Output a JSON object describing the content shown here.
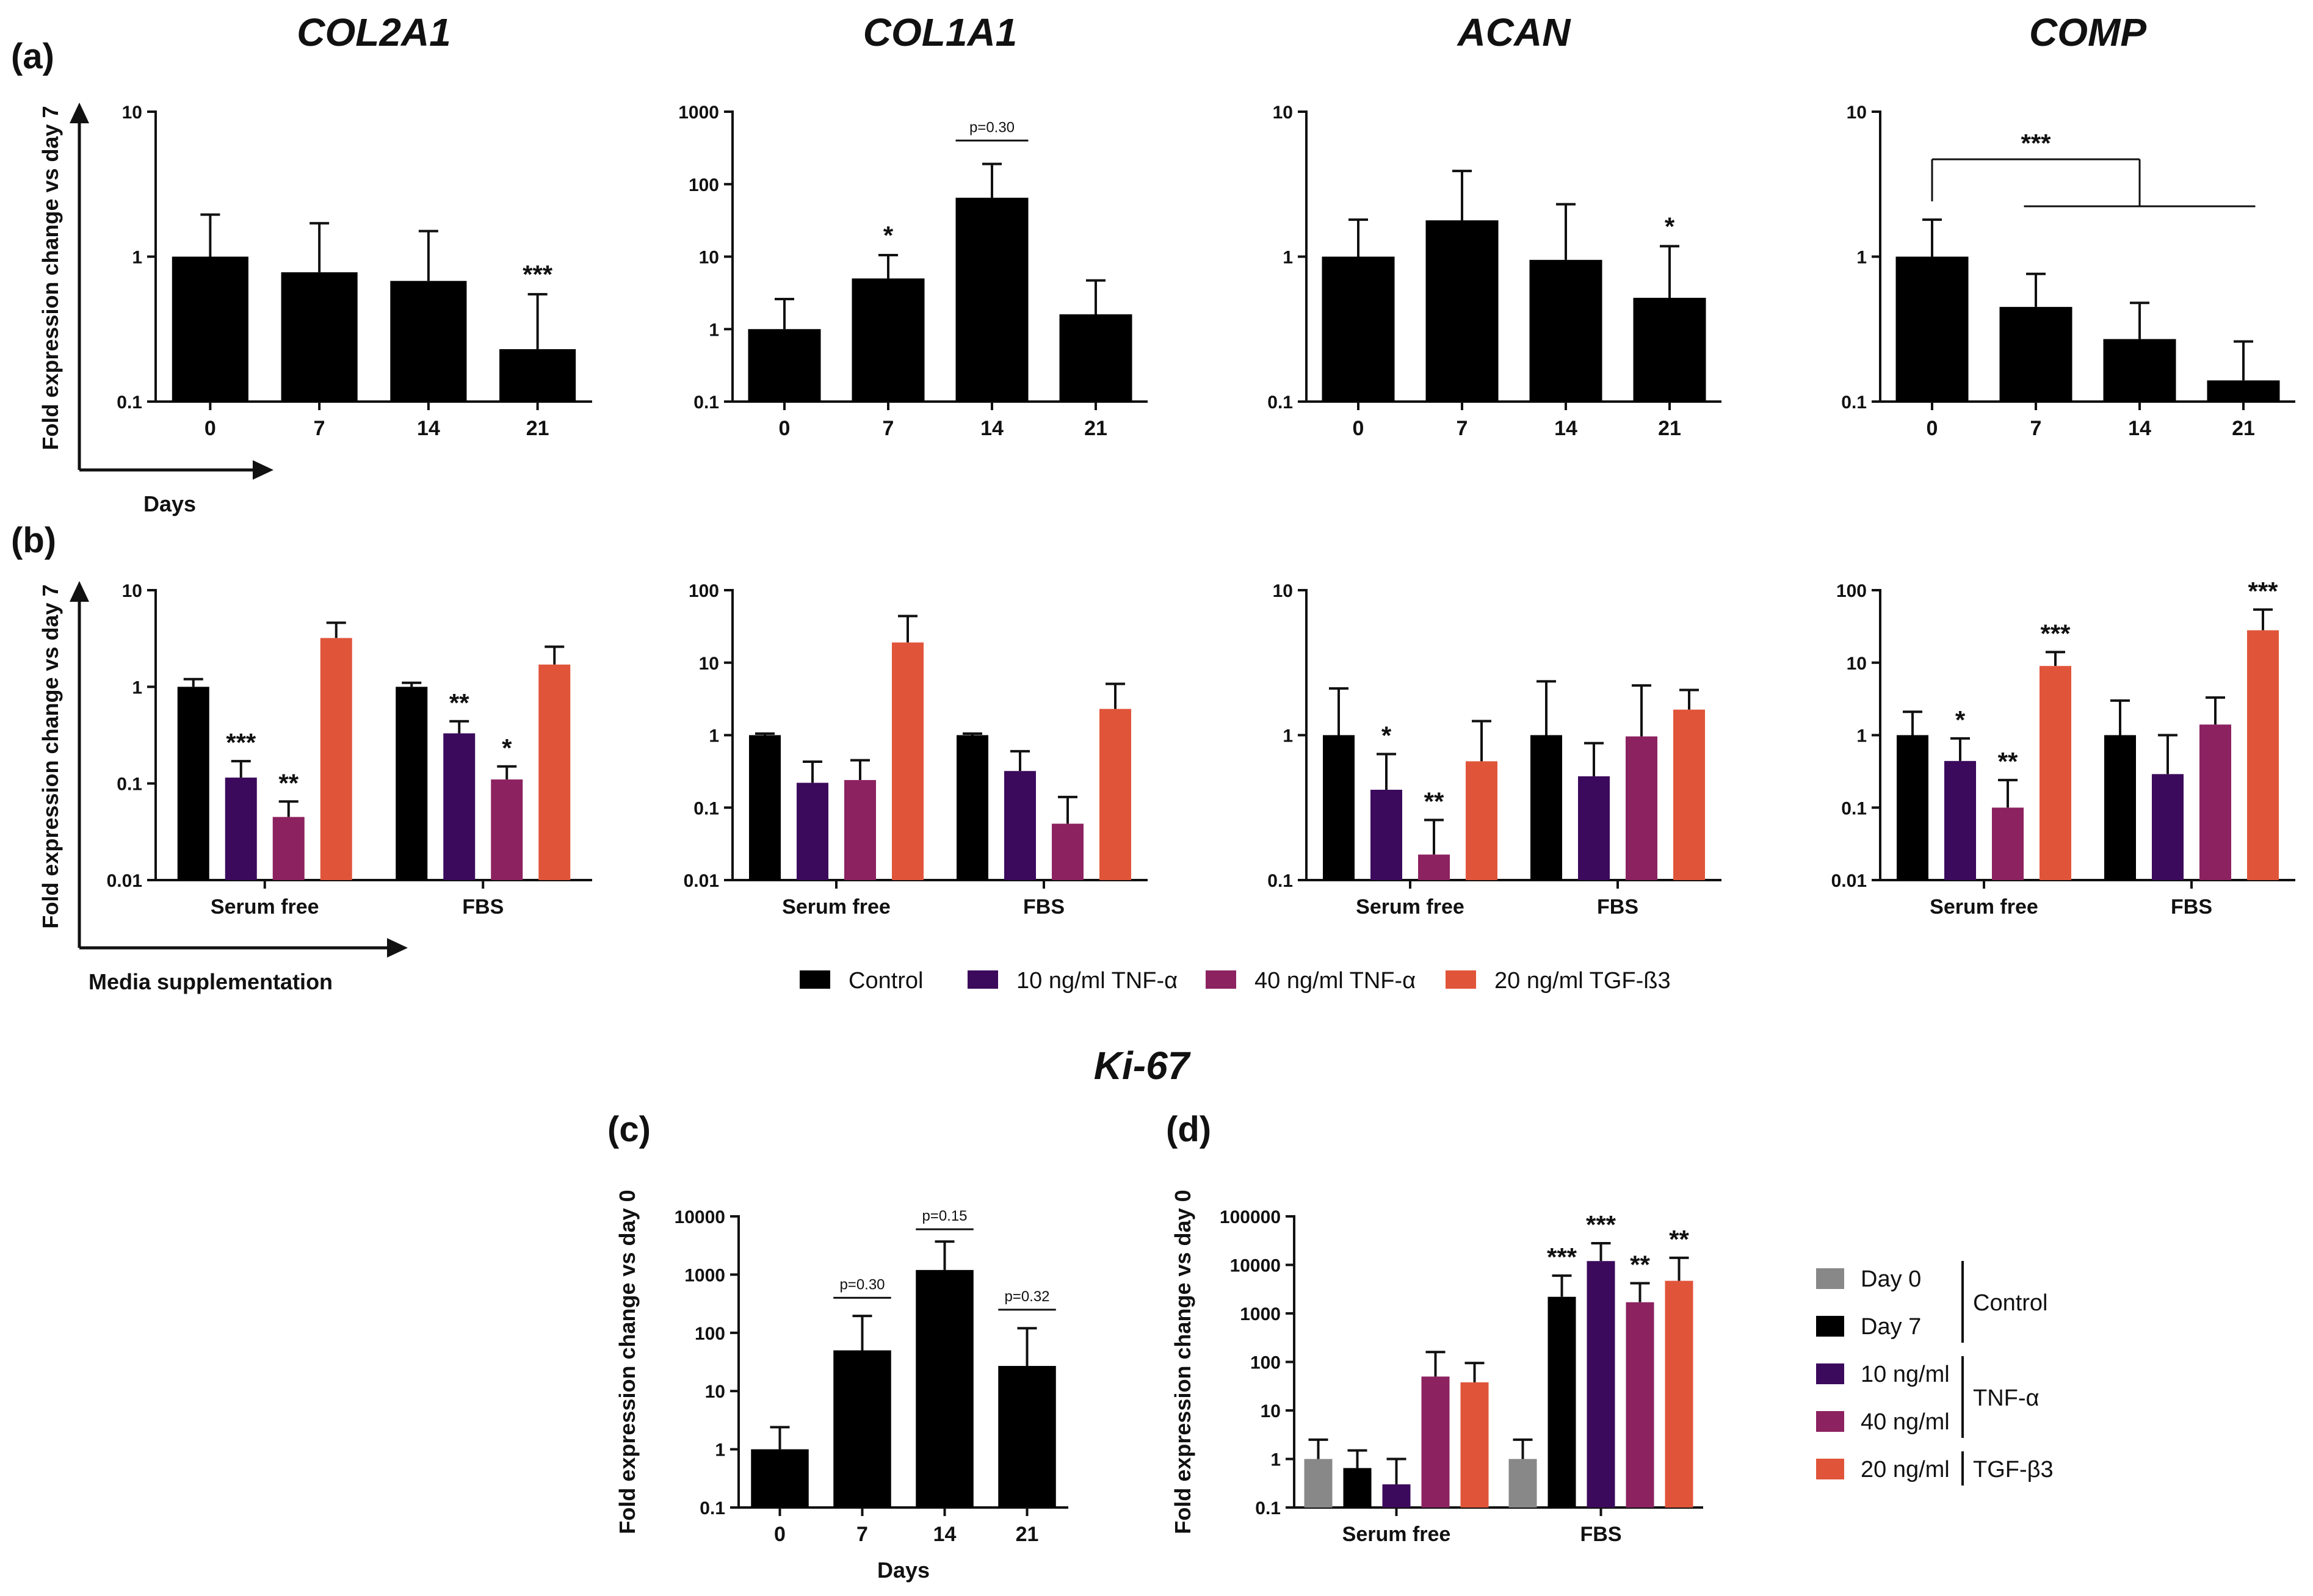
{
  "figure": {
    "ki67_title": "Ki-67",
    "panel_labels": {
      "a": "(a)",
      "b": "(b)",
      "c": "(c)",
      "d": "(d)"
    },
    "arrow_labels": {
      "a": "Days",
      "b": "Media supplementation"
    }
  },
  "colors": {
    "Control": "#000000",
    "TNF10": "#3b0a5c",
    "TNF40": "#8c2260",
    "TGF": "#e0553a",
    "Day0": "#888888",
    "Day7": "#000000"
  },
  "legend_b": {
    "items": [
      {
        "label": "Control",
        "color_key": "Control"
      },
      {
        "label": "10 ng/ml TNF-α",
        "color_key": "TNF10"
      },
      {
        "label": "40 ng/ml TNF-α",
        "color_key": "TNF40"
      },
      {
        "label": "20 ng/ml TGF-ß3",
        "color_key": "TGF"
      }
    ]
  },
  "legend_d": {
    "items": [
      {
        "label": "Day 0",
        "color_key": "Day0"
      },
      {
        "label": "Day 7",
        "color_key": "Day7"
      },
      {
        "label": "10 ng/ml",
        "color_key": "TNF10"
      },
      {
        "label": "40 ng/ml",
        "color_key": "TNF40"
      },
      {
        "label": "20 ng/ml",
        "color_key": "TGF"
      }
    ],
    "groups": [
      {
        "label": "Control",
        "from": 0,
        "to": 1
      },
      {
        "label": "TNF-α",
        "from": 2,
        "to": 3
      },
      {
        "label": "TGF-β3",
        "from": 4,
        "to": 4
      }
    ]
  },
  "chart_data": [
    {
      "id": "a1",
      "panel": "a",
      "title": "COL2A1",
      "type": "bar",
      "scale": "log",
      "ylabel": "Fold expression change vs day 7",
      "xlabel": "",
      "ylim": [
        0.1,
        10
      ],
      "yticks": [
        "0.1",
        "1",
        "10"
      ],
      "categories": [
        "0",
        "7",
        "14",
        "21"
      ],
      "values": [
        1.0,
        0.78,
        0.68,
        0.23
      ],
      "errors_upper": [
        1.95,
        1.7,
        1.5,
        0.55
      ],
      "stars": [
        "",
        "",
        "",
        "***"
      ],
      "brackets": []
    },
    {
      "id": "a2",
      "panel": "a",
      "title": "COL1A1",
      "type": "bar",
      "scale": "log",
      "ylabel": "",
      "xlabel": "",
      "ylim": [
        0.1,
        1000
      ],
      "yticks": [
        "0.1",
        "1",
        "10",
        "100",
        "1000"
      ],
      "categories": [
        "0",
        "7",
        "14",
        "21"
      ],
      "values": [
        1.0,
        5.0,
        65,
        1.6
      ],
      "errors_upper": [
        2.6,
        10.5,
        190,
        4.7
      ],
      "stars": [
        "",
        "*",
        "",
        ""
      ],
      "brackets": [
        {
          "text": "p=0.30",
          "from": 2,
          "to": 2,
          "y": 400
        }
      ]
    },
    {
      "id": "a3",
      "panel": "a",
      "title": "ACAN",
      "type": "bar",
      "scale": "log",
      "ylabel": "",
      "xlabel": "",
      "ylim": [
        0.1,
        10
      ],
      "yticks": [
        "0.1",
        "1",
        "10"
      ],
      "categories": [
        "0",
        "7",
        "14",
        "21"
      ],
      "values": [
        1.0,
        1.78,
        0.95,
        0.52
      ],
      "errors_upper": [
        1.8,
        3.9,
        2.3,
        1.18
      ],
      "stars": [
        "",
        "",
        "",
        "*"
      ],
      "brackets": []
    },
    {
      "id": "a4",
      "panel": "a",
      "title": "COMP",
      "type": "bar",
      "scale": "log",
      "ylabel": "",
      "xlabel": "",
      "ylim": [
        0.1,
        10
      ],
      "yticks": [
        "0.1",
        "1",
        "10"
      ],
      "categories": [
        "0",
        "7",
        "14",
        "21"
      ],
      "values": [
        1.0,
        0.45,
        0.27,
        0.14
      ],
      "errors_upper": [
        1.8,
        0.76,
        0.48,
        0.26
      ],
      "stars": [
        "",
        "",
        "",
        ""
      ],
      "brackets": [],
      "comparison": {
        "text": "***",
        "ref": 0,
        "targets": [
          1,
          3
        ]
      }
    },
    {
      "id": "b1",
      "panel": "b",
      "title": "COL2A1",
      "type": "bar",
      "scale": "log",
      "ylabel": "Fold expression change vs day 7",
      "xlabel": "",
      "ylim": [
        0.01,
        10
      ],
      "yticks": [
        "0.01",
        "0.1",
        "1",
        "10"
      ],
      "categories": [
        "Serum free",
        "FBS"
      ],
      "series": [
        {
          "name": "Control",
          "values": [
            1.0,
            1.0
          ],
          "errors_upper": [
            1.2,
            1.1
          ],
          "stars": [
            "",
            ""
          ]
        },
        {
          "name": "10 ng/ml TNF-α",
          "values": [
            0.115,
            0.33
          ],
          "errors_upper": [
            0.17,
            0.44
          ],
          "stars": [
            "***",
            "**"
          ]
        },
        {
          "name": "40 ng/ml TNF-α",
          "values": [
            0.045,
            0.11
          ],
          "errors_upper": [
            0.065,
            0.15
          ],
          "stars": [
            "**",
            "*"
          ]
        },
        {
          "name": "20 ng/ml TGF-ß3",
          "values": [
            3.2,
            1.7
          ],
          "errors_upper": [
            4.6,
            2.6
          ],
          "stars": [
            "",
            ""
          ]
        }
      ]
    },
    {
      "id": "b2",
      "panel": "b",
      "title": "COL1A1",
      "type": "bar",
      "scale": "log",
      "ylabel": "",
      "xlabel": "",
      "ylim": [
        0.01,
        100
      ],
      "yticks": [
        "0.01",
        "0.1",
        "1",
        "10",
        "100"
      ],
      "categories": [
        "Serum free",
        "FBS"
      ],
      "series": [
        {
          "name": "Control",
          "values": [
            1.0,
            1.0
          ],
          "errors_upper": [
            1.05,
            1.05
          ],
          "stars": [
            "",
            ""
          ]
        },
        {
          "name": "10 ng/ml TNF-α",
          "values": [
            0.22,
            0.32
          ],
          "errors_upper": [
            0.43,
            0.6
          ],
          "stars": [
            "",
            ""
          ]
        },
        {
          "name": "40 ng/ml TNF-α",
          "values": [
            0.24,
            0.06
          ],
          "errors_upper": [
            0.45,
            0.14
          ],
          "stars": [
            "",
            ""
          ]
        },
        {
          "name": "20 ng/ml TGF-ß3",
          "values": [
            19,
            2.3
          ],
          "errors_upper": [
            44,
            5.1
          ],
          "stars": [
            "",
            ""
          ]
        }
      ]
    },
    {
      "id": "b3",
      "panel": "b",
      "title": "ACAN",
      "type": "bar",
      "scale": "log",
      "ylabel": "",
      "xlabel": "",
      "ylim": [
        0.1,
        10
      ],
      "yticks": [
        "0.1",
        "1",
        "10"
      ],
      "categories": [
        "Serum free",
        "FBS"
      ],
      "series": [
        {
          "name": "Control",
          "values": [
            1.0,
            1.0
          ],
          "errors_upper": [
            2.1,
            2.35
          ],
          "stars": [
            "",
            ""
          ]
        },
        {
          "name": "10 ng/ml TNF-α",
          "values": [
            0.42,
            0.52
          ],
          "errors_upper": [
            0.74,
            0.88
          ],
          "stars": [
            "*",
            ""
          ]
        },
        {
          "name": "40 ng/ml TNF-α",
          "values": [
            0.15,
            0.98
          ],
          "errors_upper": [
            0.26,
            2.2
          ],
          "stars": [
            "**",
            ""
          ]
        },
        {
          "name": "20 ng/ml TGF-ß3",
          "values": [
            0.66,
            1.5
          ],
          "errors_upper": [
            1.25,
            2.05
          ],
          "stars": [
            "",
            ""
          ]
        }
      ]
    },
    {
      "id": "b4",
      "panel": "b",
      "title": "COMP",
      "type": "bar",
      "scale": "log",
      "ylabel": "",
      "xlabel": "",
      "ylim": [
        0.01,
        100
      ],
      "yticks": [
        "0.01",
        "0.1",
        "1",
        "10",
        "100"
      ],
      "categories": [
        "Serum free",
        "FBS"
      ],
      "series": [
        {
          "name": "Control",
          "values": [
            1.0,
            1.0
          ],
          "errors_upper": [
            2.1,
            3.0
          ],
          "stars": [
            "",
            ""
          ]
        },
        {
          "name": "10 ng/ml TNF-α",
          "values": [
            0.44,
            0.29
          ],
          "errors_upper": [
            0.9,
            1.0
          ],
          "stars": [
            "*",
            ""
          ]
        },
        {
          "name": "40 ng/ml TNF-α",
          "values": [
            0.1,
            1.4
          ],
          "errors_upper": [
            0.24,
            3.3
          ],
          "stars": [
            "**",
            ""
          ]
        },
        {
          "name": "20 ng/ml TGF-ß3",
          "values": [
            9.0,
            28
          ],
          "errors_upper": [
            14,
            54
          ],
          "stars": [
            "***",
            "***"
          ]
        }
      ]
    },
    {
      "id": "c",
      "panel": "c",
      "title": "",
      "type": "bar",
      "scale": "log",
      "ylabel": "Fold expression change vs day 0",
      "xlabel": "Days",
      "ylim": [
        0.1,
        10000
      ],
      "yticks": [
        "0.1",
        "1",
        "10",
        "100",
        "1000",
        "10000"
      ],
      "categories": [
        "0",
        "7",
        "14",
        "21"
      ],
      "values": [
        1.0,
        50,
        1200,
        27
      ],
      "errors_upper": [
        2.4,
        195,
        3700,
        120
      ],
      "stars": [
        "",
        "",
        "",
        ""
      ],
      "brackets": [
        {
          "text": "p=0.30",
          "from": 1,
          "to": 1,
          "y": 400
        },
        {
          "text": "p=0.15",
          "from": 2,
          "to": 2,
          "y": 6000
        },
        {
          "text": "p=0.32",
          "from": 3,
          "to": 3,
          "y": 250
        }
      ]
    },
    {
      "id": "d",
      "panel": "d",
      "title": "",
      "type": "bar",
      "scale": "log",
      "ylabel": "Fold expression change vs day 0",
      "xlabel": "",
      "ylim": [
        0.1,
        100000
      ],
      "yticks": [
        "0.1",
        "1",
        "10",
        "100",
        "1000",
        "10000",
        "100000"
      ],
      "categories": [
        "Serum free",
        "FBS"
      ],
      "series": [
        {
          "name": "Day 0",
          "values": [
            1.0,
            1.0
          ],
          "errors_upper": [
            2.5,
            2.5
          ],
          "stars": [
            "",
            ""
          ]
        },
        {
          "name": "Day 7",
          "values": [
            0.65,
            2200
          ],
          "errors_upper": [
            1.5,
            6000
          ],
          "stars": [
            "",
            "***"
          ]
        },
        {
          "name": "10 ng/ml TNF-α",
          "values": [
            0.3,
            12000
          ],
          "errors_upper": [
            1.0,
            28000
          ],
          "stars": [
            "",
            "***"
          ]
        },
        {
          "name": "40 ng/ml TNF-α",
          "values": [
            50,
            1700
          ],
          "errors_upper": [
            160,
            4200
          ],
          "stars": [
            "",
            "**"
          ]
        },
        {
          "name": "20 ng/ml TGF-β3",
          "values": [
            38,
            4700
          ],
          "errors_upper": [
            95,
            14000
          ],
          "stars": [
            "",
            "**"
          ]
        }
      ]
    }
  ]
}
